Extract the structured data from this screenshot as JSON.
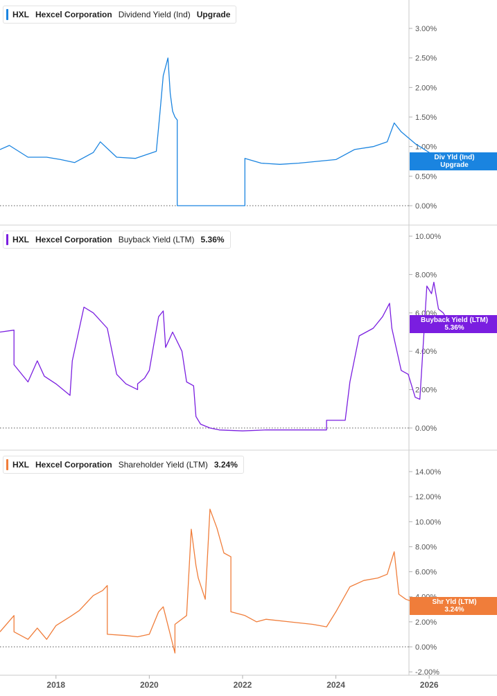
{
  "chart_data": [
    {
      "type": "line",
      "ticker": "HXL",
      "company": "Hexcel Corporation",
      "metric": "Dividend Yield (Ind)",
      "legend_value": "Upgrade",
      "badge": [
        "Div Yld (Ind)",
        "Upgrade"
      ],
      "color": "#1a84e0",
      "ylim": [
        0,
        3.0
      ],
      "yticks": [
        0,
        0.5,
        1.0,
        1.5,
        2.0,
        2.5,
        3.0
      ],
      "ytick_labels": [
        "0.00%",
        "0.50%",
        "1.00%",
        "1.50%",
        "2.00%",
        "2.50%",
        "3.00%"
      ],
      "x": [
        2016.8,
        2017.0,
        2017.4,
        2017.8,
        2018.1,
        2018.4,
        2018.8,
        2018.95,
        2019.3,
        2019.7,
        2020.0,
        2020.15,
        2020.22,
        2020.3,
        2020.4,
        2020.45,
        2020.5,
        2020.55,
        2020.6,
        2020.6,
        2022.05,
        2022.05,
        2022.4,
        2022.8,
        2023.2,
        2023.6,
        2024.0,
        2024.4,
        2024.8,
        2025.1,
        2025.25,
        2025.4,
        2025.7,
        2026.0,
        2026.2,
        2026.35,
        2026.45
      ],
      "y": [
        0.95,
        1.02,
        0.82,
        0.82,
        0.78,
        0.73,
        0.9,
        1.08,
        0.82,
        0.8,
        0.88,
        0.92,
        1.5,
        2.2,
        2.5,
        1.9,
        1.6,
        1.5,
        1.45,
        0.0,
        0.0,
        0.8,
        0.72,
        0.7,
        0.72,
        0.75,
        0.78,
        0.95,
        1.0,
        1.08,
        1.4,
        1.25,
        1.05,
        0.9,
        0.82,
        0.8,
        0.75
      ]
    },
    {
      "type": "line",
      "ticker": "HXL",
      "company": "Hexcel Corporation",
      "metric": "Buyback Yield (LTM)",
      "legend_value": "5.36%",
      "badge": [
        "Buyback Yield (LTM)",
        "5.36%"
      ],
      "color": "#7a1ee0",
      "ylim": [
        0,
        10.0
      ],
      "yticks": [
        0,
        2,
        4,
        6,
        8,
        10
      ],
      "ytick_labels": [
        "0.00%",
        "2.00%",
        "4.00%",
        "6.00%",
        "8.00%",
        "10.00%"
      ],
      "x": [
        2016.8,
        2017.1,
        2017.1,
        2017.4,
        2017.6,
        2017.75,
        2018.0,
        2018.3,
        2018.35,
        2018.6,
        2018.8,
        2019.1,
        2019.3,
        2019.5,
        2019.75,
        2019.75,
        2019.9,
        2020.0,
        2020.2,
        2020.3,
        2020.35,
        2020.5,
        2020.7,
        2020.8,
        2020.95,
        2021.0,
        2021.1,
        2021.3,
        2021.5,
        2022.0,
        2022.5,
        2023.0,
        2023.5,
        2023.8,
        2023.8,
        2024.2,
        2024.3,
        2024.5,
        2024.8,
        2025.0,
        2025.15,
        2025.2,
        2025.4,
        2025.55,
        2025.7,
        2025.8,
        2025.95,
        2026.05,
        2026.1,
        2026.2,
        2026.3,
        2026.45
      ],
      "y": [
        5.0,
        5.1,
        3.3,
        2.4,
        3.5,
        2.7,
        2.3,
        1.7,
        3.5,
        6.3,
        6.0,
        5.2,
        2.8,
        2.3,
        2.0,
        2.3,
        2.6,
        3.0,
        5.8,
        6.1,
        4.2,
        5.0,
        4.0,
        2.4,
        2.2,
        0.6,
        0.2,
        0.0,
        -0.1,
        -0.15,
        -0.1,
        -0.1,
        -0.1,
        -0.1,
        0.4,
        0.4,
        2.4,
        4.8,
        5.2,
        5.8,
        6.5,
        5.2,
        3.0,
        2.8,
        1.6,
        1.5,
        7.4,
        7.0,
        7.6,
        6.2,
        6.0,
        5.4
      ]
    },
    {
      "type": "line",
      "ticker": "HXL",
      "company": "Hexcel Corporation",
      "metric": "Shareholder Yield (LTM)",
      "legend_value": "3.24%",
      "badge": [
        "Shr Yld (LTM)",
        "3.24%"
      ],
      "color": "#f07d3a",
      "ylim": [
        -2.0,
        14.0
      ],
      "yticks": [
        -2,
        0,
        2,
        4,
        6,
        8,
        10,
        12,
        14
      ],
      "ytick_labels": [
        "-2.00%",
        "0.00%",
        "2.00%",
        "4.00%",
        "6.00%",
        "8.00%",
        "10.00%",
        "12.00%",
        "14.00%"
      ],
      "x": [
        2016.8,
        2017.1,
        2017.1,
        2017.4,
        2017.6,
        2017.8,
        2018.0,
        2018.3,
        2018.5,
        2018.8,
        2019.0,
        2019.1,
        2019.1,
        2019.5,
        2019.75,
        2020.0,
        2020.2,
        2020.3,
        2020.55,
        2020.55,
        2020.8,
        2020.9,
        2021.0,
        2021.05,
        2021.2,
        2021.3,
        2021.45,
        2021.6,
        2021.75,
        2021.75,
        2022.05,
        2022.3,
        2022.5,
        2023.0,
        2023.5,
        2023.8,
        2024.0,
        2024.3,
        2024.6,
        2024.9,
        2025.1,
        2025.25,
        2025.35,
        2025.5,
        2025.8,
        2026.1,
        2026.3,
        2026.45
      ],
      "y": [
        1.2,
        2.5,
        1.2,
        0.6,
        1.5,
        0.6,
        1.7,
        2.4,
        2.9,
        4.1,
        4.5,
        4.9,
        1.0,
        0.9,
        0.8,
        1.0,
        2.8,
        3.2,
        -0.5,
        1.8,
        2.5,
        9.4,
        6.5,
        5.5,
        3.8,
        11.0,
        9.5,
        7.5,
        7.2,
        2.8,
        2.5,
        2.0,
        2.2,
        2.0,
        1.8,
        1.6,
        2.8,
        4.8,
        5.3,
        5.5,
        5.8,
        7.6,
        4.2,
        3.8,
        3.4,
        3.2,
        3.5,
        3.24
      ]
    }
  ],
  "x_axis": {
    "range": [
      2016.8,
      2026.8
    ],
    "ticks": [
      2018,
      2020,
      2022,
      2024,
      2026
    ],
    "tick_labels": [
      "2018",
      "2020",
      "2022",
      "2024",
      "2026"
    ]
  }
}
